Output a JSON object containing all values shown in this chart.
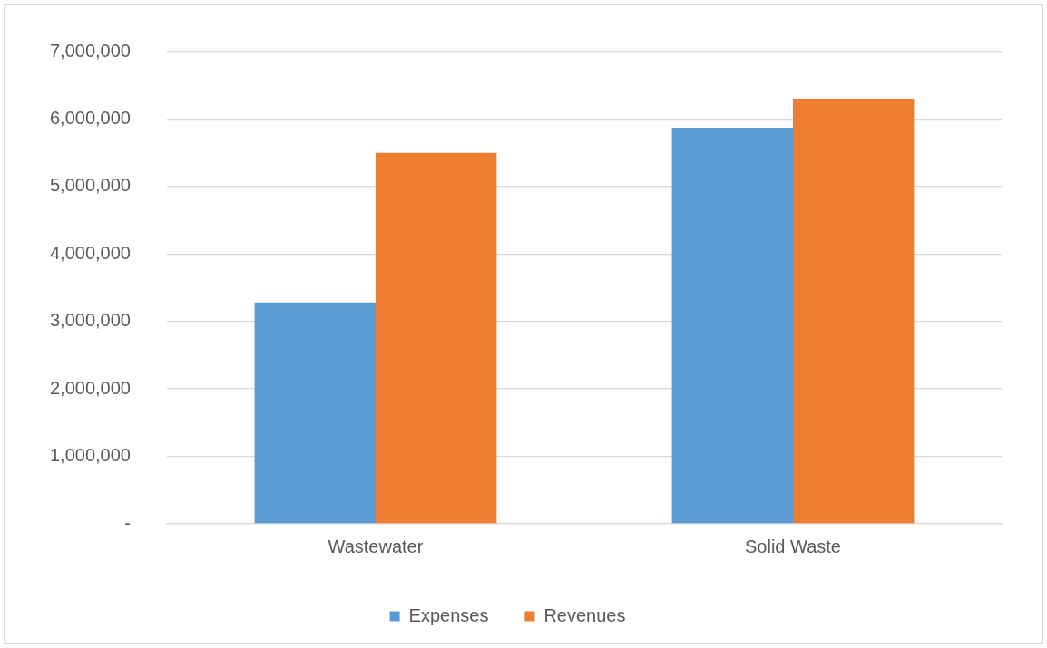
{
  "chart_data": {
    "type": "bar",
    "categories": [
      "Wastewater",
      "Solid Waste"
    ],
    "series": [
      {
        "name": "Expenses",
        "color": "#5b9bd5",
        "values": [
          3280000,
          5870000
        ]
      },
      {
        "name": "Revenues",
        "color": "#ed7d31",
        "values": [
          5500000,
          6300000
        ]
      }
    ],
    "ylim": [
      0,
      7000000
    ],
    "yticks": [
      {
        "value": 0,
        "label": "-"
      },
      {
        "value": 1000000,
        "label": "1,000,000"
      },
      {
        "value": 2000000,
        "label": "2,000,000"
      },
      {
        "value": 3000000,
        "label": "3,000,000"
      },
      {
        "value": 4000000,
        "label": "4,000,000"
      },
      {
        "value": 5000000,
        "label": "5,000,000"
      },
      {
        "value": 6000000,
        "label": "6,000,000"
      },
      {
        "value": 7000000,
        "label": "7,000,000"
      }
    ],
    "grid": "y",
    "legend": "bottom"
  }
}
